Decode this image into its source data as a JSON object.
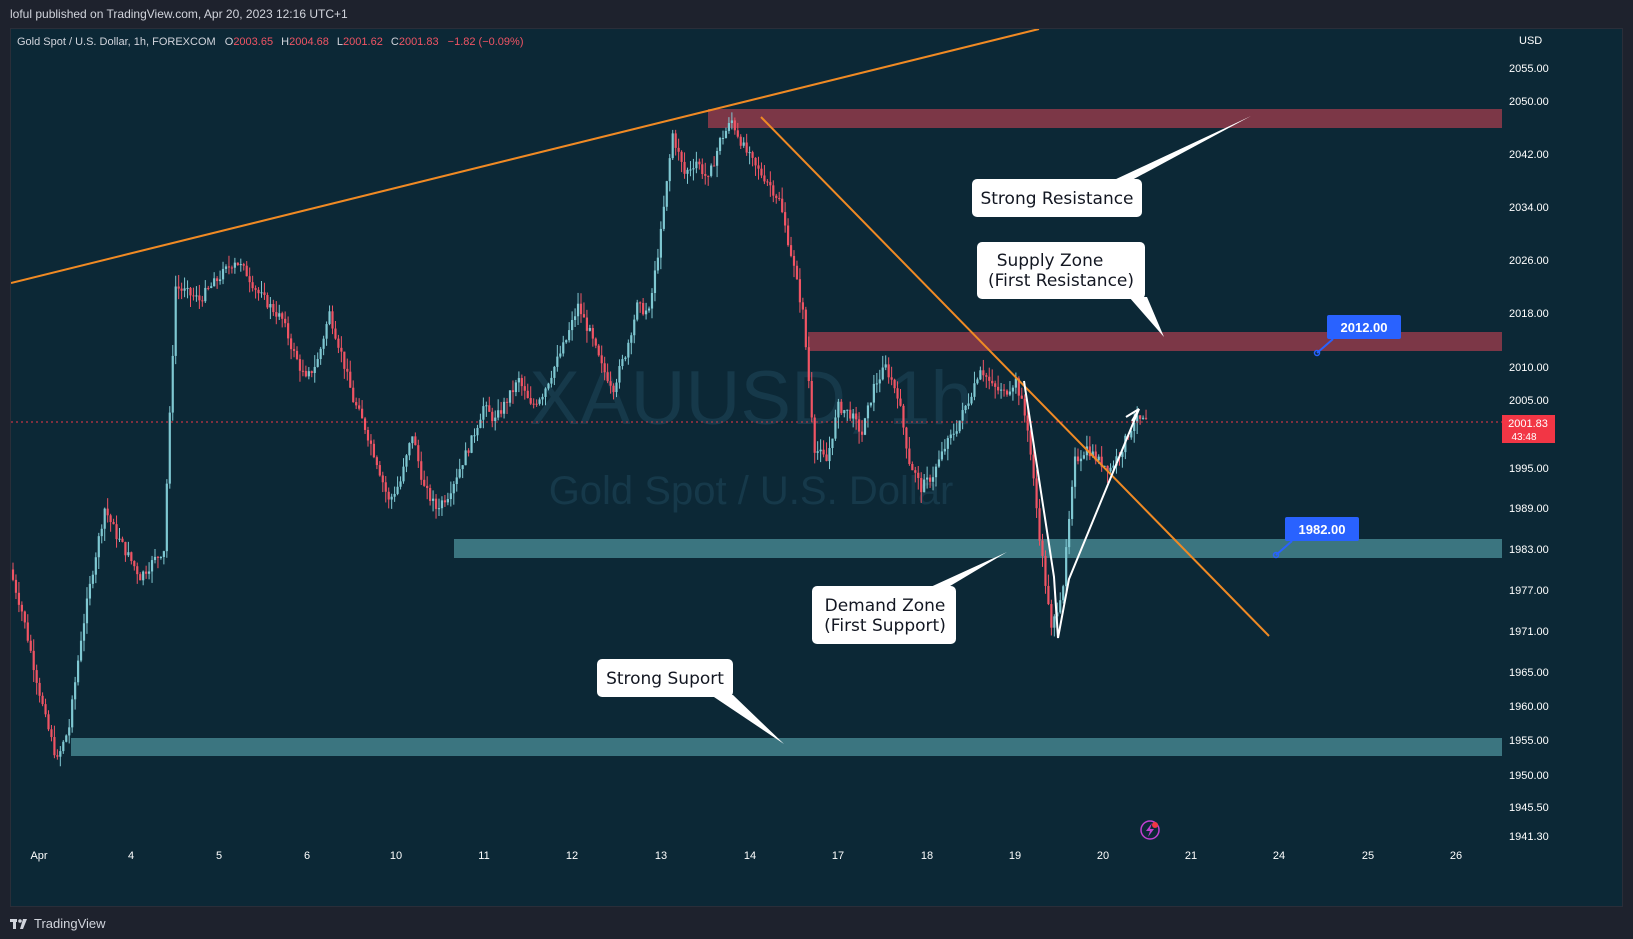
{
  "header": {
    "published": "loful published on TradingView.com, Apr 20, 2023 12:16 UTC+1"
  },
  "symbol": {
    "name": "Gold Spot / U.S. Dollar, 1h, FOREXCOM",
    "o_label": "O",
    "o_value": "2003.65",
    "h_label": "H",
    "h_value": "2004.68",
    "l_label": "L",
    "l_value": "2001.62",
    "c_label": "C",
    "c_value": "2001.83",
    "change": "−1.82 (−0.09%)"
  },
  "watermark": {
    "ticker": "XAUUSD, 1h",
    "name": "Gold Spot / U.S. Dollar"
  },
  "price_axis": {
    "currency": "USD",
    "current_price": "2001.83",
    "countdown": "43:48"
  },
  "annotations": {
    "strong_resistance": "Strong Resistance",
    "supply_line1": "Supply Zone",
    "supply_line2": "(First Resistance)",
    "demand_line1": "Demand Zone",
    "demand_line2": "(First Support)",
    "strong_support": "Strong Suport",
    "price_tag_upper": "2012.00",
    "price_tag_lower": "1982.00"
  },
  "footer": {
    "brand": "TradingView"
  },
  "colors": {
    "background": "#0c2836",
    "up_candle": "#7fc8d2",
    "down_candle": "#f05464",
    "supply_zone": "#7c3747",
    "demand_zone": "#3b7580",
    "trendline": "#f08a24",
    "price_tag": "#2962ff",
    "current_price": "#f23645"
  },
  "chart_data": {
    "type": "candlestick",
    "title": "Gold Spot / U.S. Dollar, 1h, FOREXCOM",
    "ylabel": "USD",
    "ylim": [
      1939,
      2059
    ],
    "y_ticks": [
      2055.0,
      2050.0,
      2042.0,
      2034.0,
      2026.0,
      2018.0,
      2010.0,
      2005.0,
      1995.0,
      1989.0,
      1983.0,
      1977.0,
      1971.0,
      1965.0,
      1960.0,
      1955.0,
      1950.0,
      1945.5,
      1941.3
    ],
    "x_ticks": [
      "Apr",
      "4",
      "5",
      "6",
      "10",
      "11",
      "12",
      "13",
      "14",
      "17",
      "18",
      "19",
      "20",
      "21",
      "24",
      "25",
      "26"
    ],
    "zones": [
      {
        "label": "Strong Resistance",
        "from": 2046.8,
        "to": 2049.5
      },
      {
        "label": "Supply Zone (First Resistance)",
        "from": 2012.0,
        "to": 2014.8
      },
      {
        "label": "Demand Zone (First Support)",
        "from": 1982.0,
        "to": 1985.0
      },
      {
        "label": "Strong Suport",
        "from": 1953.0,
        "to": 1955.5
      }
    ],
    "close_path": [
      1980,
      1974,
      1966,
      1958,
      1952,
      1957,
      1970,
      1980,
      1989,
      1985,
      1982,
      1979,
      1981,
      1983,
      2022,
      2021,
      2020,
      2022,
      2024,
      2026,
      2024,
      2021,
      2019,
      2017,
      2012,
      2008,
      2011,
      2018,
      2012,
      2005,
      2001,
      1996,
      1990,
      1993,
      2000,
      1992,
      1989,
      1991,
      1995,
      1999,
      2004,
      2002,
      2005,
      2008,
      2004,
      2006,
      2010,
      2014,
      2019,
      2015,
      2010,
      2007,
      2012,
      2019,
      2018,
      2030,
      2045,
      2039,
      2041,
      2038,
      2044,
      2047,
      2043,
      2040,
      2038,
      2035,
      2027,
      2018,
      1998,
      1996,
      2004,
      2003,
      2000,
      2007,
      2010,
      2006,
      1996,
      1992,
      1994,
      1998,
      2001,
      2005,
      2010,
      2007,
      2006,
      2008,
      2001,
      1985,
      1971,
      1978,
      1996,
      1998,
      1996,
      1995,
      1998,
      2002,
      2001.83
    ]
  }
}
